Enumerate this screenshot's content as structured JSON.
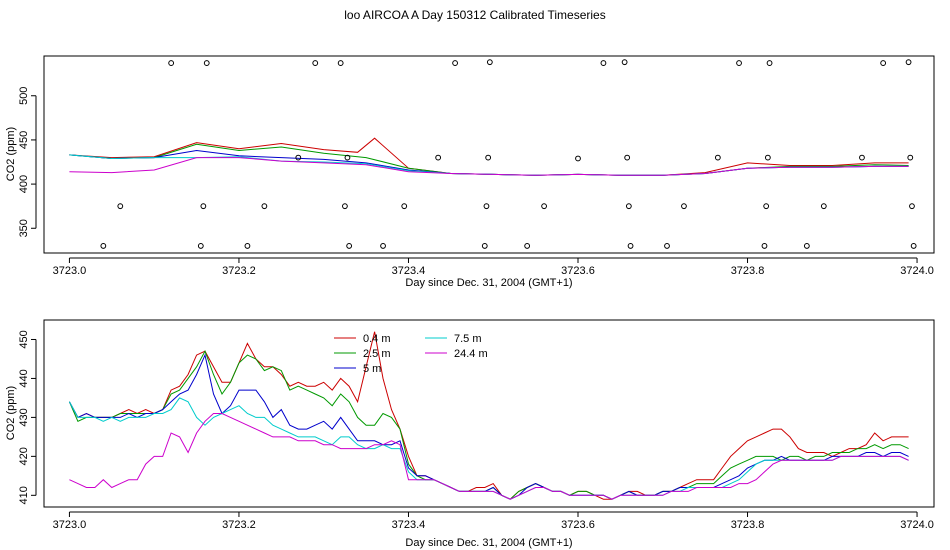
{
  "page": {
    "title": "loo AIRCOA A  Day 150312  Calibrated Timeseries"
  },
  "chart_data": [
    {
      "type": "scatter",
      "xlabel": "Day since Dec. 31, 2004 (GMT+1)",
      "ylabel": "CO2 (ppm)",
      "xlim": [
        3722.97,
        3724.02
      ],
      "ylim": [
        322,
        545
      ],
      "xticks": [
        3723.0,
        3723.2,
        3723.4,
        3723.6,
        3723.8,
        3724.0
      ],
      "xtick_labels": [
        "3723.0",
        "3723.2",
        "3723.4",
        "3723.6",
        "3723.8",
        "3724.0"
      ],
      "yticks": [
        350,
        400,
        450,
        500
      ],
      "ytick_labels": [
        "350",
        "400",
        "450",
        "500"
      ],
      "line_series": [
        {
          "color": "#cc0000",
          "x": [
            3723.0,
            3723.05,
            3723.1,
            3723.15,
            3723.2,
            3723.25,
            3723.3,
            3723.34,
            3723.36,
            3723.4,
            3723.45,
            3723.5,
            3723.55,
            3723.6,
            3723.65,
            3723.7,
            3723.75,
            3723.8,
            3723.85,
            3723.9,
            3723.95,
            3723.99
          ],
          "y": [
            433,
            430,
            431,
            447,
            440,
            446,
            439,
            436,
            452,
            418,
            412,
            411,
            410,
            411,
            410,
            410,
            413,
            424,
            421,
            421,
            424,
            424
          ]
        },
        {
          "color": "#009900",
          "x": [
            3723.0,
            3723.05,
            3723.1,
            3723.15,
            3723.2,
            3723.25,
            3723.3,
            3723.35,
            3723.4,
            3723.45,
            3723.5,
            3723.55,
            3723.6,
            3723.65,
            3723.7,
            3723.75,
            3723.8,
            3723.85,
            3723.9,
            3723.95,
            3723.99
          ],
          "y": [
            433,
            429,
            430,
            445,
            438,
            442,
            435,
            430,
            418,
            412,
            411,
            410,
            411,
            410,
            410,
            412,
            418,
            420,
            420,
            422,
            421
          ]
        },
        {
          "color": "#0000cc",
          "x": [
            3723.0,
            3723.05,
            3723.1,
            3723.15,
            3723.2,
            3723.25,
            3723.3,
            3723.35,
            3723.4,
            3723.45,
            3723.5,
            3723.55,
            3723.6,
            3723.65,
            3723.7,
            3723.75,
            3723.8,
            3723.85,
            3723.9,
            3723.95,
            3723.99
          ],
          "y": [
            433,
            429,
            430,
            438,
            432,
            430,
            428,
            424,
            416,
            412,
            411,
            410,
            411,
            410,
            410,
            412,
            418,
            419,
            419,
            420,
            420
          ]
        },
        {
          "color": "#00cccc",
          "x": [
            3723.0,
            3723.05,
            3723.1,
            3723.15,
            3723.2,
            3723.25,
            3723.3,
            3723.35,
            3723.4,
            3723.45,
            3723.5,
            3723.55,
            3723.6,
            3723.65,
            3723.7,
            3723.75,
            3723.8,
            3723.85,
            3723.9,
            3723.95,
            3723.99
          ],
          "y": [
            433,
            429,
            430,
            430,
            431,
            426,
            425,
            423,
            415,
            412,
            411,
            410,
            411,
            410,
            410,
            412,
            418,
            419,
            419,
            420,
            420
          ]
        },
        {
          "color": "#cc00cc",
          "x": [
            3723.0,
            3723.05,
            3723.1,
            3723.15,
            3723.2,
            3723.25,
            3723.3,
            3723.35,
            3723.4,
            3723.45,
            3723.5,
            3723.55,
            3723.6,
            3723.65,
            3723.7,
            3723.75,
            3723.8,
            3723.85,
            3723.9,
            3723.95,
            3723.99
          ],
          "y": [
            414,
            413,
            416,
            430,
            430,
            426,
            424,
            422,
            414,
            412,
            411,
            410,
            411,
            410,
            410,
            412,
            418,
            419,
            419,
            420,
            420
          ]
        }
      ],
      "points": [
        {
          "x": 3723.04,
          "y": 330
        },
        {
          "x": 3723.06,
          "y": 375
        },
        {
          "x": 3723.12,
          "y": 537
        },
        {
          "x": 3723.155,
          "y": 330
        },
        {
          "x": 3723.158,
          "y": 375
        },
        {
          "x": 3723.162,
          "y": 537
        },
        {
          "x": 3723.21,
          "y": 330
        },
        {
          "x": 3723.23,
          "y": 375
        },
        {
          "x": 3723.27,
          "y": 430
        },
        {
          "x": 3723.29,
          "y": 537
        },
        {
          "x": 3723.32,
          "y": 537
        },
        {
          "x": 3723.325,
          "y": 375
        },
        {
          "x": 3723.328,
          "y": 430
        },
        {
          "x": 3723.33,
          "y": 330
        },
        {
          "x": 3723.37,
          "y": 330
        },
        {
          "x": 3723.395,
          "y": 375
        },
        {
          "x": 3723.435,
          "y": 430
        },
        {
          "x": 3723.455,
          "y": 537
        },
        {
          "x": 3723.49,
          "y": 330
        },
        {
          "x": 3723.492,
          "y": 375
        },
        {
          "x": 3723.494,
          "y": 430
        },
        {
          "x": 3723.496,
          "y": 538
        },
        {
          "x": 3723.54,
          "y": 330
        },
        {
          "x": 3723.56,
          "y": 375
        },
        {
          "x": 3723.6,
          "y": 429
        },
        {
          "x": 3723.63,
          "y": 537
        },
        {
          "x": 3723.655,
          "y": 538
        },
        {
          "x": 3723.658,
          "y": 430
        },
        {
          "x": 3723.66,
          "y": 375
        },
        {
          "x": 3723.662,
          "y": 330
        },
        {
          "x": 3723.705,
          "y": 330
        },
        {
          "x": 3723.725,
          "y": 375
        },
        {
          "x": 3723.765,
          "y": 430
        },
        {
          "x": 3723.79,
          "y": 537
        },
        {
          "x": 3723.82,
          "y": 330
        },
        {
          "x": 3723.822,
          "y": 375
        },
        {
          "x": 3723.824,
          "y": 430
        },
        {
          "x": 3723.826,
          "y": 537
        },
        {
          "x": 3723.87,
          "y": 330
        },
        {
          "x": 3723.89,
          "y": 375
        },
        {
          "x": 3723.935,
          "y": 430
        },
        {
          "x": 3723.96,
          "y": 537
        },
        {
          "x": 3723.99,
          "y": 538
        },
        {
          "x": 3723.992,
          "y": 430
        },
        {
          "x": 3723.994,
          "y": 375
        },
        {
          "x": 3723.996,
          "y": 330
        }
      ]
    },
    {
      "type": "line",
      "xlabel": "Day since Dec. 31, 2004 (GMT+1)",
      "ylabel": "CO2 (ppm)",
      "xlim": [
        3722.97,
        3724.02
      ],
      "ylim": [
        407,
        455
      ],
      "xticks": [
        3723.0,
        3723.2,
        3723.4,
        3723.6,
        3723.8,
        3724.0
      ],
      "xtick_labels": [
        "3723.0",
        "3723.2",
        "3723.4",
        "3723.6",
        "3723.8",
        "3724.0"
      ],
      "yticks": [
        410,
        420,
        430,
        440,
        450
      ],
      "ytick_labels": [
        "410",
        "420",
        "430",
        "440",
        "450"
      ],
      "legend_placement": "top-center",
      "x": [
        3723.0,
        3723.01,
        3723.02,
        3723.03,
        3723.04,
        3723.05,
        3723.06,
        3723.07,
        3723.08,
        3723.09,
        3723.1,
        3723.11,
        3723.12,
        3723.13,
        3723.14,
        3723.15,
        3723.16,
        3723.17,
        3723.18,
        3723.19,
        3723.2,
        3723.21,
        3723.22,
        3723.23,
        3723.24,
        3723.25,
        3723.26,
        3723.27,
        3723.28,
        3723.29,
        3723.3,
        3723.31,
        3723.32,
        3723.33,
        3723.34,
        3723.35,
        3723.36,
        3723.37,
        3723.38,
        3723.39,
        3723.4,
        3723.41,
        3723.42,
        3723.43,
        3723.44,
        3723.45,
        3723.46,
        3723.47,
        3723.48,
        3723.49,
        3723.5,
        3723.51,
        3723.52,
        3723.53,
        3723.54,
        3723.55,
        3723.56,
        3723.57,
        3723.58,
        3723.59,
        3723.6,
        3723.61,
        3723.62,
        3723.63,
        3723.64,
        3723.65,
        3723.66,
        3723.67,
        3723.68,
        3723.69,
        3723.7,
        3723.71,
        3723.72,
        3723.73,
        3723.74,
        3723.75,
        3723.76,
        3723.77,
        3723.78,
        3723.79,
        3723.8,
        3723.81,
        3723.82,
        3723.83,
        3723.84,
        3723.85,
        3723.86,
        3723.87,
        3723.88,
        3723.89,
        3723.9,
        3723.91,
        3723.92,
        3723.93,
        3723.94,
        3723.95,
        3723.96,
        3723.97,
        3723.98,
        3723.99
      ],
      "series": [
        {
          "name": "0.4 m",
          "color": "#cc0000",
          "values": [
            434,
            430,
            431,
            430,
            430,
            430,
            431,
            432,
            431,
            432,
            431,
            432,
            437,
            438,
            441,
            446,
            447,
            443,
            439,
            439,
            444,
            449,
            445,
            443,
            443,
            441,
            438,
            439,
            438,
            438,
            439,
            437,
            440,
            438,
            434,
            443,
            452,
            440,
            432,
            427,
            420,
            415,
            415,
            414,
            413,
            412,
            411,
            411,
            412,
            412,
            413,
            410,
            409,
            411,
            412,
            413,
            412,
            411,
            411,
            410,
            411,
            411,
            410,
            409,
            409,
            410,
            411,
            411,
            410,
            410,
            411,
            411,
            412,
            413,
            414,
            414,
            414,
            417,
            420,
            422,
            424,
            425,
            426,
            427,
            427,
            425,
            422,
            421,
            421,
            421,
            420,
            421,
            422,
            422,
            423,
            426,
            424,
            425,
            425,
            425
          ]
        },
        {
          "name": "2.5 m",
          "color": "#009900",
          "values": [
            434,
            429,
            430,
            430,
            430,
            430,
            431,
            431,
            431,
            431,
            431,
            432,
            436,
            437,
            440,
            443,
            447,
            441,
            436,
            439,
            444,
            446,
            445,
            442,
            443,
            442,
            437,
            438,
            437,
            436,
            435,
            433,
            436,
            434,
            430,
            428,
            428,
            431,
            430,
            427,
            418,
            415,
            414,
            414,
            413,
            412,
            411,
            411,
            411,
            411,
            412,
            410,
            409,
            411,
            412,
            413,
            412,
            411,
            411,
            410,
            411,
            411,
            410,
            410,
            409,
            410,
            411,
            410,
            410,
            410,
            411,
            411,
            412,
            412,
            413,
            413,
            413,
            415,
            417,
            418,
            419,
            420,
            420,
            420,
            419,
            420,
            420,
            419,
            420,
            420,
            421,
            421,
            421,
            422,
            422,
            423,
            422,
            423,
            423,
            422
          ]
        },
        {
          "name": "5 m",
          "color": "#0000cc",
          "values": [
            434,
            430,
            431,
            430,
            430,
            430,
            430,
            431,
            430,
            431,
            431,
            432,
            434,
            436,
            437,
            441,
            446,
            436,
            431,
            433,
            437,
            437,
            437,
            434,
            430,
            432,
            428,
            427,
            427,
            428,
            429,
            427,
            430,
            427,
            424,
            424,
            424,
            423,
            423,
            424,
            417,
            415,
            415,
            414,
            413,
            412,
            411,
            411,
            411,
            411,
            412,
            410,
            409,
            410,
            412,
            413,
            412,
            411,
            411,
            410,
            410,
            410,
            410,
            410,
            409,
            410,
            411,
            410,
            410,
            410,
            411,
            411,
            412,
            412,
            412,
            412,
            412,
            413,
            414,
            415,
            417,
            418,
            419,
            419,
            420,
            419,
            419,
            419,
            419,
            419,
            420,
            420,
            420,
            420,
            421,
            421,
            420,
            421,
            421,
            420
          ]
        },
        {
          "name": "7.5 m",
          "color": "#00cccc",
          "values": [
            434,
            430,
            430,
            430,
            429,
            430,
            429,
            430,
            430,
            430,
            431,
            431,
            432,
            435,
            434,
            430,
            428,
            430,
            431,
            432,
            433,
            431,
            430,
            430,
            428,
            427,
            426,
            425,
            425,
            425,
            424,
            423,
            425,
            425,
            423,
            422,
            422,
            423,
            422,
            422,
            416,
            414,
            414,
            414,
            413,
            412,
            411,
            411,
            411,
            411,
            411,
            410,
            409,
            410,
            411,
            412,
            412,
            411,
            411,
            410,
            410,
            410,
            410,
            410,
            409,
            410,
            410,
            410,
            410,
            410,
            410,
            411,
            411,
            412,
            412,
            412,
            412,
            412,
            413,
            414,
            416,
            418,
            419,
            419,
            419,
            419,
            419,
            419,
            419,
            419,
            419,
            420,
            420,
            420,
            420,
            420,
            420,
            420,
            420,
            419
          ]
        },
        {
          "name": "24.4 m",
          "color": "#cc00cc",
          "values": [
            414,
            413,
            412,
            412,
            414,
            412,
            413,
            414,
            414,
            418,
            420,
            420,
            426,
            425,
            421,
            426,
            429,
            431,
            431,
            430,
            429,
            428,
            427,
            426,
            425,
            425,
            425,
            424,
            424,
            424,
            423,
            423,
            422,
            422,
            422,
            422,
            423,
            423,
            424,
            423,
            414,
            414,
            414,
            414,
            413,
            412,
            411,
            411,
            411,
            411,
            411,
            410,
            409,
            410,
            411,
            412,
            412,
            411,
            411,
            410,
            410,
            410,
            410,
            410,
            409,
            410,
            410,
            410,
            410,
            410,
            410,
            411,
            411,
            411,
            412,
            412,
            412,
            412,
            412,
            413,
            413,
            414,
            416,
            418,
            419,
            419,
            419,
            419,
            419,
            419,
            419,
            420,
            420,
            420,
            420,
            420,
            420,
            420,
            420,
            419
          ]
        }
      ]
    }
  ]
}
